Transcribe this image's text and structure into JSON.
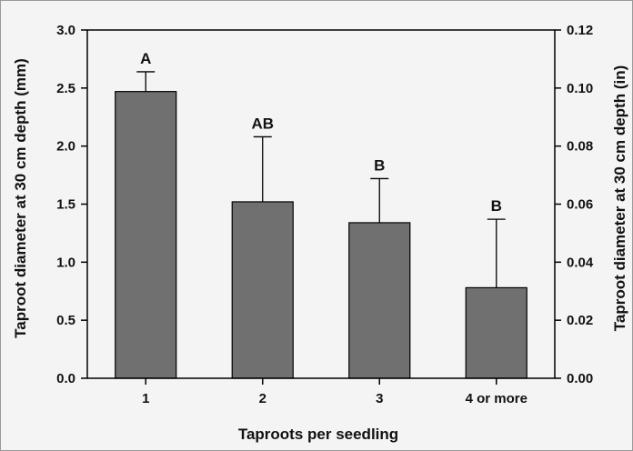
{
  "chart_data": {
    "type": "bar",
    "title": "",
    "xlabel": "Taproots per seedling",
    "ylabel": "Taproot diameter at 30 cm depth (mm)",
    "ylabel_right": "Taproot diameter at 30 cm depth (in)",
    "categories": [
      "1",
      "2",
      "3",
      "4 or more"
    ],
    "values": [
      2.47,
      1.52,
      1.34,
      0.78
    ],
    "error_upper": [
      0.17,
      0.56,
      0.38,
      0.59
    ],
    "significance_letters": [
      "A",
      "AB",
      "B",
      "B"
    ],
    "ylim": [
      0,
      3.0
    ],
    "yticks": [
      "0.0",
      "0.5",
      "1.0",
      "1.5",
      "2.0",
      "2.5",
      "3.0"
    ],
    "ylim_right": [
      0,
      0.12
    ],
    "yticks_right": [
      "0.00",
      "0.02",
      "0.04",
      "0.06",
      "0.08",
      "0.10",
      "0.12"
    ],
    "grid": false,
    "legend": "none",
    "colors": {
      "bar": "#707070",
      "background": "#f4f4f4",
      "frame": "#000000"
    }
  }
}
